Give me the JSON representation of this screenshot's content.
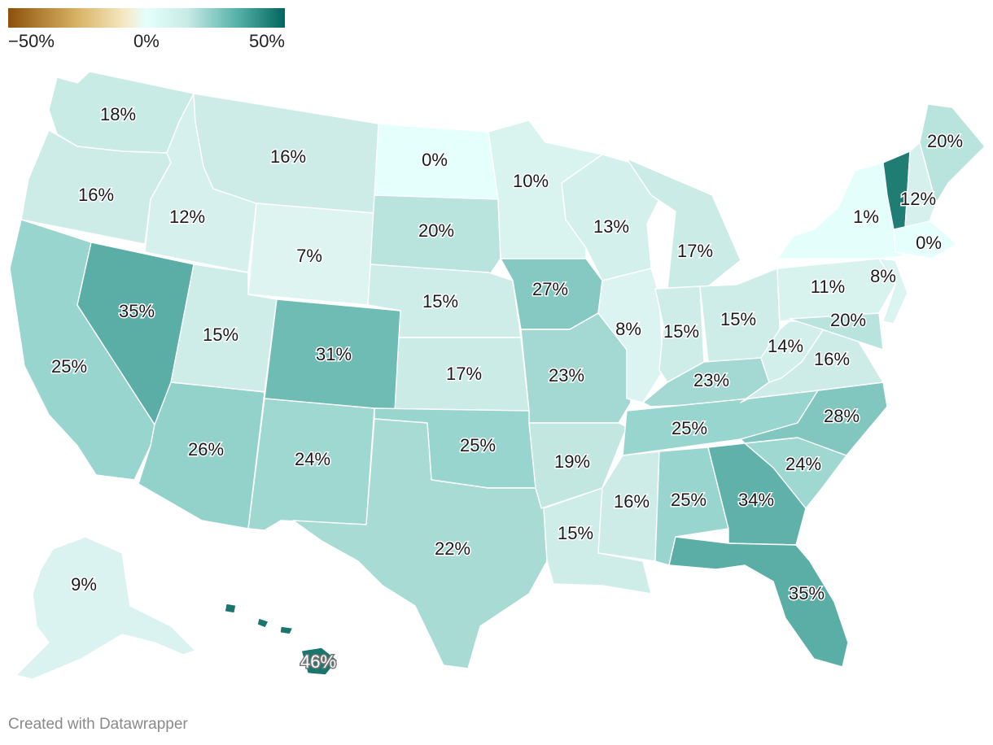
{
  "legend": {
    "min_label": "−50%",
    "mid_label": "0%",
    "max_label": "50%",
    "colors": [
      "#8c510a",
      "#d8b365",
      "#f6e8c3",
      "#e5fffc",
      "#c7eae5",
      "#5ab4ac",
      "#01665e"
    ]
  },
  "credit": "Created with Datawrapper",
  "states": {
    "WA": {
      "value": "18%",
      "color": "#c9ebe6"
    },
    "OR": {
      "value": "16%",
      "color": "#cdece7"
    },
    "CA": {
      "value": "25%",
      "color": "#99d5cf"
    },
    "NV": {
      "value": "35%",
      "color": "#5aaea6"
    },
    "ID": {
      "value": "12%",
      "color": "#d6f1ed"
    },
    "MT": {
      "value": "16%",
      "color": "#cdece7"
    },
    "WY": {
      "value": "7%",
      "color": "#ddf4f1"
    },
    "UT": {
      "value": "15%",
      "color": "#cfede8"
    },
    "AZ": {
      "value": "26%",
      "color": "#93d2cb"
    },
    "CO": {
      "value": "31%",
      "color": "#6fbcb4"
    },
    "NM": {
      "value": "24%",
      "color": "#9fd7d1"
    },
    "ND": {
      "value": "0%",
      "color": "#e5fffc"
    },
    "SD": {
      "value": "20%",
      "color": "#b9e3dd"
    },
    "NE": {
      "value": "15%",
      "color": "#cfede8"
    },
    "KS": {
      "value": "17%",
      "color": "#cbebe6"
    },
    "OK": {
      "value": "25%",
      "color": "#99d5cf"
    },
    "TX": {
      "value": "22%",
      "color": "#a9dbd5"
    },
    "MN": {
      "value": "10%",
      "color": "#d9f3ef"
    },
    "IA": {
      "value": "27%",
      "color": "#86c9c2"
    },
    "MO": {
      "value": "23%",
      "color": "#a4d9d3"
    },
    "AR": {
      "value": "19%",
      "color": "#c2e7e1"
    },
    "LA": {
      "value": "15%",
      "color": "#cfede8"
    },
    "WI": {
      "value": "13%",
      "color": "#d4f0ec"
    },
    "IL": {
      "value": "8%",
      "color": "#dcf4f1"
    },
    "MI": {
      "value": "17%",
      "color": "#cbebe6"
    },
    "IN": {
      "value": "15%",
      "color": "#cfede8"
    },
    "OH": {
      "value": "15%",
      "color": "#cfede8"
    },
    "KY": {
      "value": "23%",
      "color": "#a4d9d3"
    },
    "TN": {
      "value": "25%",
      "color": "#99d5cf"
    },
    "MS": {
      "value": "16%",
      "color": "#cdece7"
    },
    "AL": {
      "value": "25%",
      "color": "#99d5cf"
    },
    "GA": {
      "value": "34%",
      "color": "#5fb1a9"
    },
    "FL": {
      "value": "35%",
      "color": "#5aaea6"
    },
    "SC": {
      "value": "24%",
      "color": "#9fd7d1"
    },
    "NC": {
      "value": "28%",
      "color": "#81c7c0"
    },
    "VA": {
      "value": "16%",
      "color": "#cdece7"
    },
    "WV": {
      "value": "14%",
      "color": "#d2efeb"
    },
    "PA": {
      "value": "11%",
      "color": "#d8f2ee"
    },
    "MD": {
      "value": "20%",
      "color": "#b9e3dd"
    },
    "NY": {
      "value": "1%",
      "color": "#e3fefb"
    },
    "NJ": {
      "value": "8%",
      "color": "#dcf4f1"
    },
    "VT": {
      "value": "",
      "color": "#1f7d74"
    },
    "NH": {
      "value": "12%",
      "color": "#d6f1ed"
    },
    "ME": {
      "value": "20%",
      "color": "#b9e3dd"
    },
    "MA": {
      "value": "0%",
      "color": "#e5fffc"
    },
    "AK": {
      "value": "9%",
      "color": "#daf3f0"
    },
    "HI": {
      "value": "46%",
      "color": "#1a766d"
    }
  }
}
